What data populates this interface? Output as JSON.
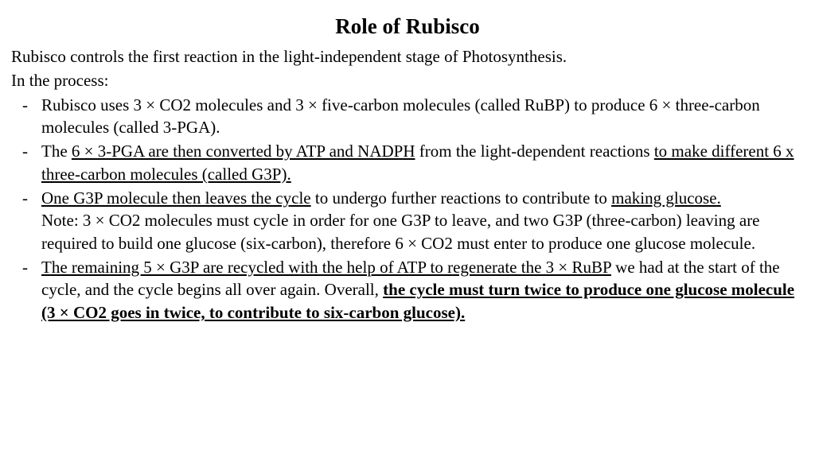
{
  "title": "Role of Rubisco",
  "intro1": "Rubisco controls the first reaction in the light-independent stage of Photosynthesis.",
  "intro2": "In the process:",
  "b1": "Rubisco uses 3 × CO2 molecules and 3 × five-carbon molecules (called RuBP) to produce 6 × three-carbon molecules (called 3-PGA).",
  "b2a": "The ",
  "b2u1": "6 × 3-PGA are then converted by ATP and NADPH",
  "b2b": " from the light-dependent reactions ",
  "b2u2": "to make different 6 x three-carbon molecules (called G3P).",
  "b3u1": "One G3P molecule then leaves the cycle",
  "b3a": " to undergo further reactions to contribute to ",
  "b3u2": "making glucose.",
  "b3note": "Note: 3 × CO2 molecules must cycle in order for one G3P to leave, and two G3P (three-carbon) leaving are required to build one glucose (six-carbon), therefore 6 × CO2 must enter to produce one glucose molecule.",
  "b4u1": "The remaining 5 × G3P are recycled with the help of ATP to regenerate the 3 × RuBP",
  "b4a": " we had at the start of the cycle, and the cycle begins all over again. Overall, ",
  "b4bu": "the cycle must turn twice to produce one glucose molecule (3 × CO2 goes in twice, to contribute to six-carbon glucose).",
  "colors": {
    "text": "#000000",
    "background": "#ffffff"
  },
  "fonts": {
    "family": "Times New Roman",
    "title_size_pt": 20,
    "body_size_pt": 16
  }
}
